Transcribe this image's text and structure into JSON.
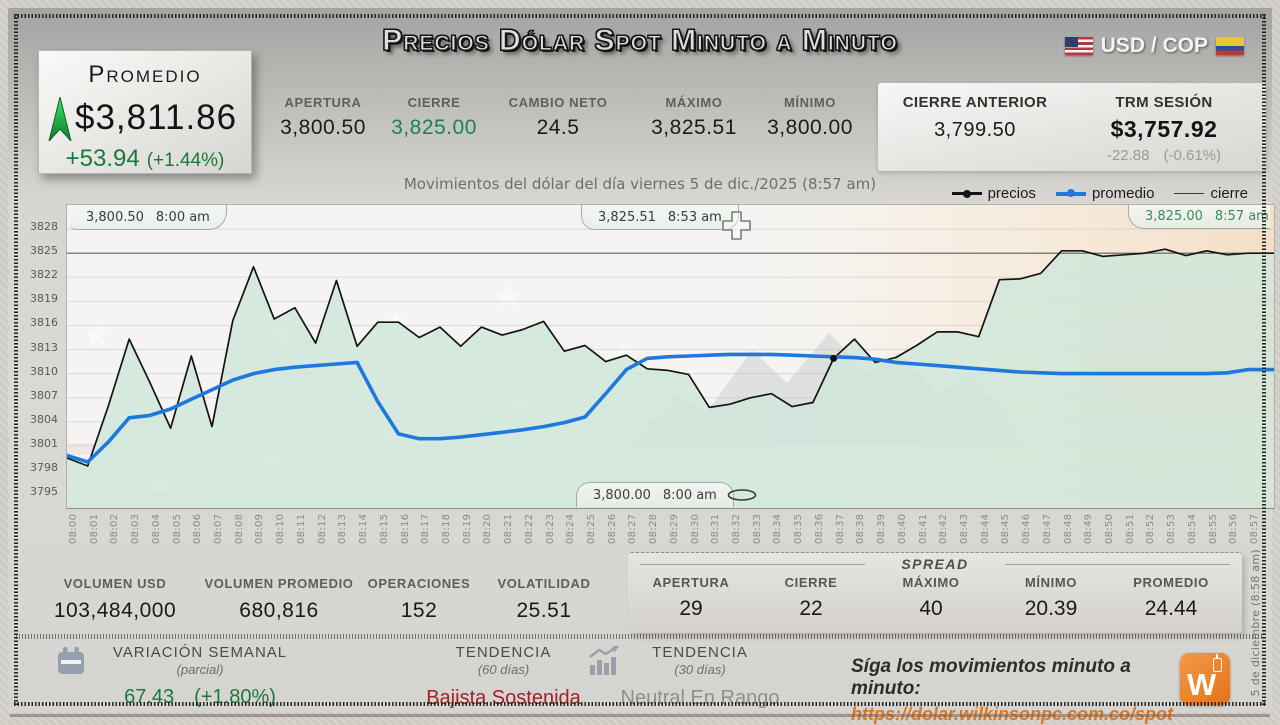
{
  "colors": {
    "green": "#1d8348",
    "red": "#a32126",
    "orange": "#e0761f",
    "blue_line": "#1d79dd",
    "black_line": "#141414",
    "mint_fill": "#cfe7da"
  },
  "header": {
    "title": "Precios Dólar Spot Minuto a Minuto",
    "pair": {
      "label": "USD / COP"
    },
    "promedio_panel": {
      "label": "Promedio",
      "value": "$3,811.86",
      "change": "+53.94",
      "change_pct": "(+1.44%)",
      "trend": "up"
    },
    "stats": [
      {
        "label": "APERTURA",
        "value": "3,800.50"
      },
      {
        "label": "CIERRE",
        "value": "3,825.00"
      },
      {
        "label": "CAMBIO NETO",
        "value": "24.5"
      },
      {
        "label": "MÁXIMO",
        "value": "3,825.51"
      },
      {
        "label": "MÍNIMO",
        "value": "3,800.00"
      }
    ],
    "secondary": {
      "cierre_anterior": {
        "label": "CIERRE ANTERIOR",
        "value": "3,799.50"
      },
      "trm": {
        "label": "TRM SESIÓN",
        "value": "$3,757.92",
        "change": "-22.88",
        "change_pct": "(-0.61%)"
      }
    }
  },
  "chart": {
    "subtitle": "Movimientos del dólar del día viernes 5 de dic./2025 (8:57 am)",
    "legend": [
      {
        "name": "precios"
      },
      {
        "name": "promedio"
      },
      {
        "name": "cierre"
      }
    ],
    "annotations": {
      "open": {
        "value": "3,800.50",
        "time": "8:00 am"
      },
      "high": {
        "value": "3,825.51",
        "time": "8:53 am"
      },
      "last": {
        "value": "3,825.00",
        "time": "8:57 am"
      },
      "low": {
        "value": "3,800.00",
        "time": "8:00 am"
      }
    },
    "side_note": "5 de diciembre (8:58 am)"
  },
  "chart_data": {
    "type": "line",
    "title": "Movimientos del dólar del día viernes 5 de dic./2025 (8:57 am)",
    "ylim": [
      3795,
      3828
    ],
    "yticks": [
      3828,
      3825,
      3822,
      3819,
      3816,
      3813,
      3810,
      3807,
      3804,
      3801,
      3798,
      3795
    ],
    "grid": true,
    "legend_position": "top-right",
    "x_times": [
      "08:00",
      "08:01",
      "08:02",
      "08:03",
      "08:04",
      "08:05",
      "08:06",
      "08:07",
      "08:08",
      "08:09",
      "08:10",
      "08:11",
      "08:12",
      "08:13",
      "08:14",
      "08:15",
      "08:16",
      "08:17",
      "08:18",
      "08:19",
      "08:20",
      "08:21",
      "08:22",
      "08:23",
      "08:24",
      "08:25",
      "08:26",
      "08:27",
      "08:28",
      "08:29",
      "08:30",
      "08:31",
      "08:32",
      "08:33",
      "08:34",
      "08:35",
      "08:36",
      "08:37",
      "08:38",
      "08:39",
      "08:40",
      "08:41",
      "08:42",
      "08:43",
      "08:44",
      "08:45",
      "08:46",
      "08:47",
      "08:48",
      "08:49",
      "08:50",
      "08:51",
      "08:52",
      "08:53",
      "08:54",
      "08:55",
      "08:56",
      "08:57"
    ],
    "series": [
      {
        "name": "precios",
        "type": "area-line",
        "color": "#141414",
        "fill": "#cfe7da",
        "values": [
          3799.5,
          3798.5,
          3806,
          3814.3,
          3808.9,
          3803.2,
          3812.2,
          3803.4,
          3816.6,
          3823.3,
          3816.8,
          3818.2,
          3813.8,
          3821.6,
          3813.4,
          3816.4,
          3816.4,
          3814.5,
          3815.8,
          3813.4,
          3815.8,
          3814.8,
          3815.5,
          3816.5,
          3812.8,
          3813.5,
          3811.5,
          3812.3,
          3810.6,
          3810.4,
          3809.9,
          3805.8,
          3806.2,
          3807,
          3807.5,
          3805.9,
          3806.4,
          3811.9,
          3814.3,
          3811.4,
          3812,
          3813.5,
          3815.2,
          3815.2,
          3814.6,
          3821.7,
          3821.8,
          3822.5,
          3825.3,
          3825.3,
          3824.6,
          3824.8,
          3825,
          3825.5,
          3824.7,
          3825.3,
          3824.8,
          3825
        ]
      },
      {
        "name": "promedio",
        "type": "line",
        "color": "#1d79dd",
        "values": [
          3799.8,
          3799,
          3801.5,
          3804.5,
          3804.8,
          3805.6,
          3806.8,
          3808,
          3809.2,
          3810,
          3810.5,
          3810.8,
          3811,
          3811.2,
          3811.4,
          3806.5,
          3802.5,
          3801.9,
          3801.9,
          3802.1,
          3802.4,
          3802.7,
          3803,
          3803.4,
          3803.9,
          3804.6,
          3807.5,
          3810.5,
          3811.9,
          3812.1,
          3812.2,
          3812.3,
          3812.4,
          3812.4,
          3812.4,
          3812.3,
          3812.2,
          3812.1,
          3812,
          3811.8,
          3811.4,
          3811.2,
          3811,
          3810.8,
          3810.6,
          3810.4,
          3810.2,
          3810.1,
          3810,
          3810,
          3810,
          3810,
          3810,
          3810,
          3810,
          3810,
          3810.1,
          3810.5
        ]
      },
      {
        "name": "cierre",
        "type": "hline",
        "color": "#4a4a48",
        "value": 3825
      }
    ],
    "marker": {
      "series": "precios",
      "index": 37
    }
  },
  "volume_stats": [
    {
      "label": "VOLUMEN USD",
      "value": "103,484,000"
    },
    {
      "label": "VOLUMEN PROMEDIO",
      "value": "680,816"
    },
    {
      "label": "OPERACIONES",
      "value": "152"
    },
    {
      "label": "VOLATILIDAD",
      "value": "25.51"
    }
  ],
  "spread": {
    "title": "SPREAD",
    "items": [
      {
        "label": "APERTURA",
        "value": "29"
      },
      {
        "label": "CIERRE",
        "value": "22"
      },
      {
        "label": "MÁXIMO",
        "value": "40"
      },
      {
        "label": "MÍNIMO",
        "value": "20.39"
      },
      {
        "label": "PROMEDIO",
        "value": "24.44"
      }
    ]
  },
  "footer": {
    "variacion": {
      "label": "VARIACIÓN SEMANAL",
      "sub": "(parcial)",
      "value": "67.43",
      "pct": "(+1.80%)"
    },
    "tendencia60": {
      "label": "TENDENCIA",
      "sub": "(60 días)",
      "value": "Bajista Sostenida"
    },
    "tendencia30": {
      "label": "TENDENCIA",
      "sub": "(30 días)",
      "value": "Neutral En Rango"
    },
    "cta": {
      "line1": "Síga los movimientos minuto a minuto:",
      "url": "https://dolar.wilkinsonpc.com.co/spot"
    }
  }
}
